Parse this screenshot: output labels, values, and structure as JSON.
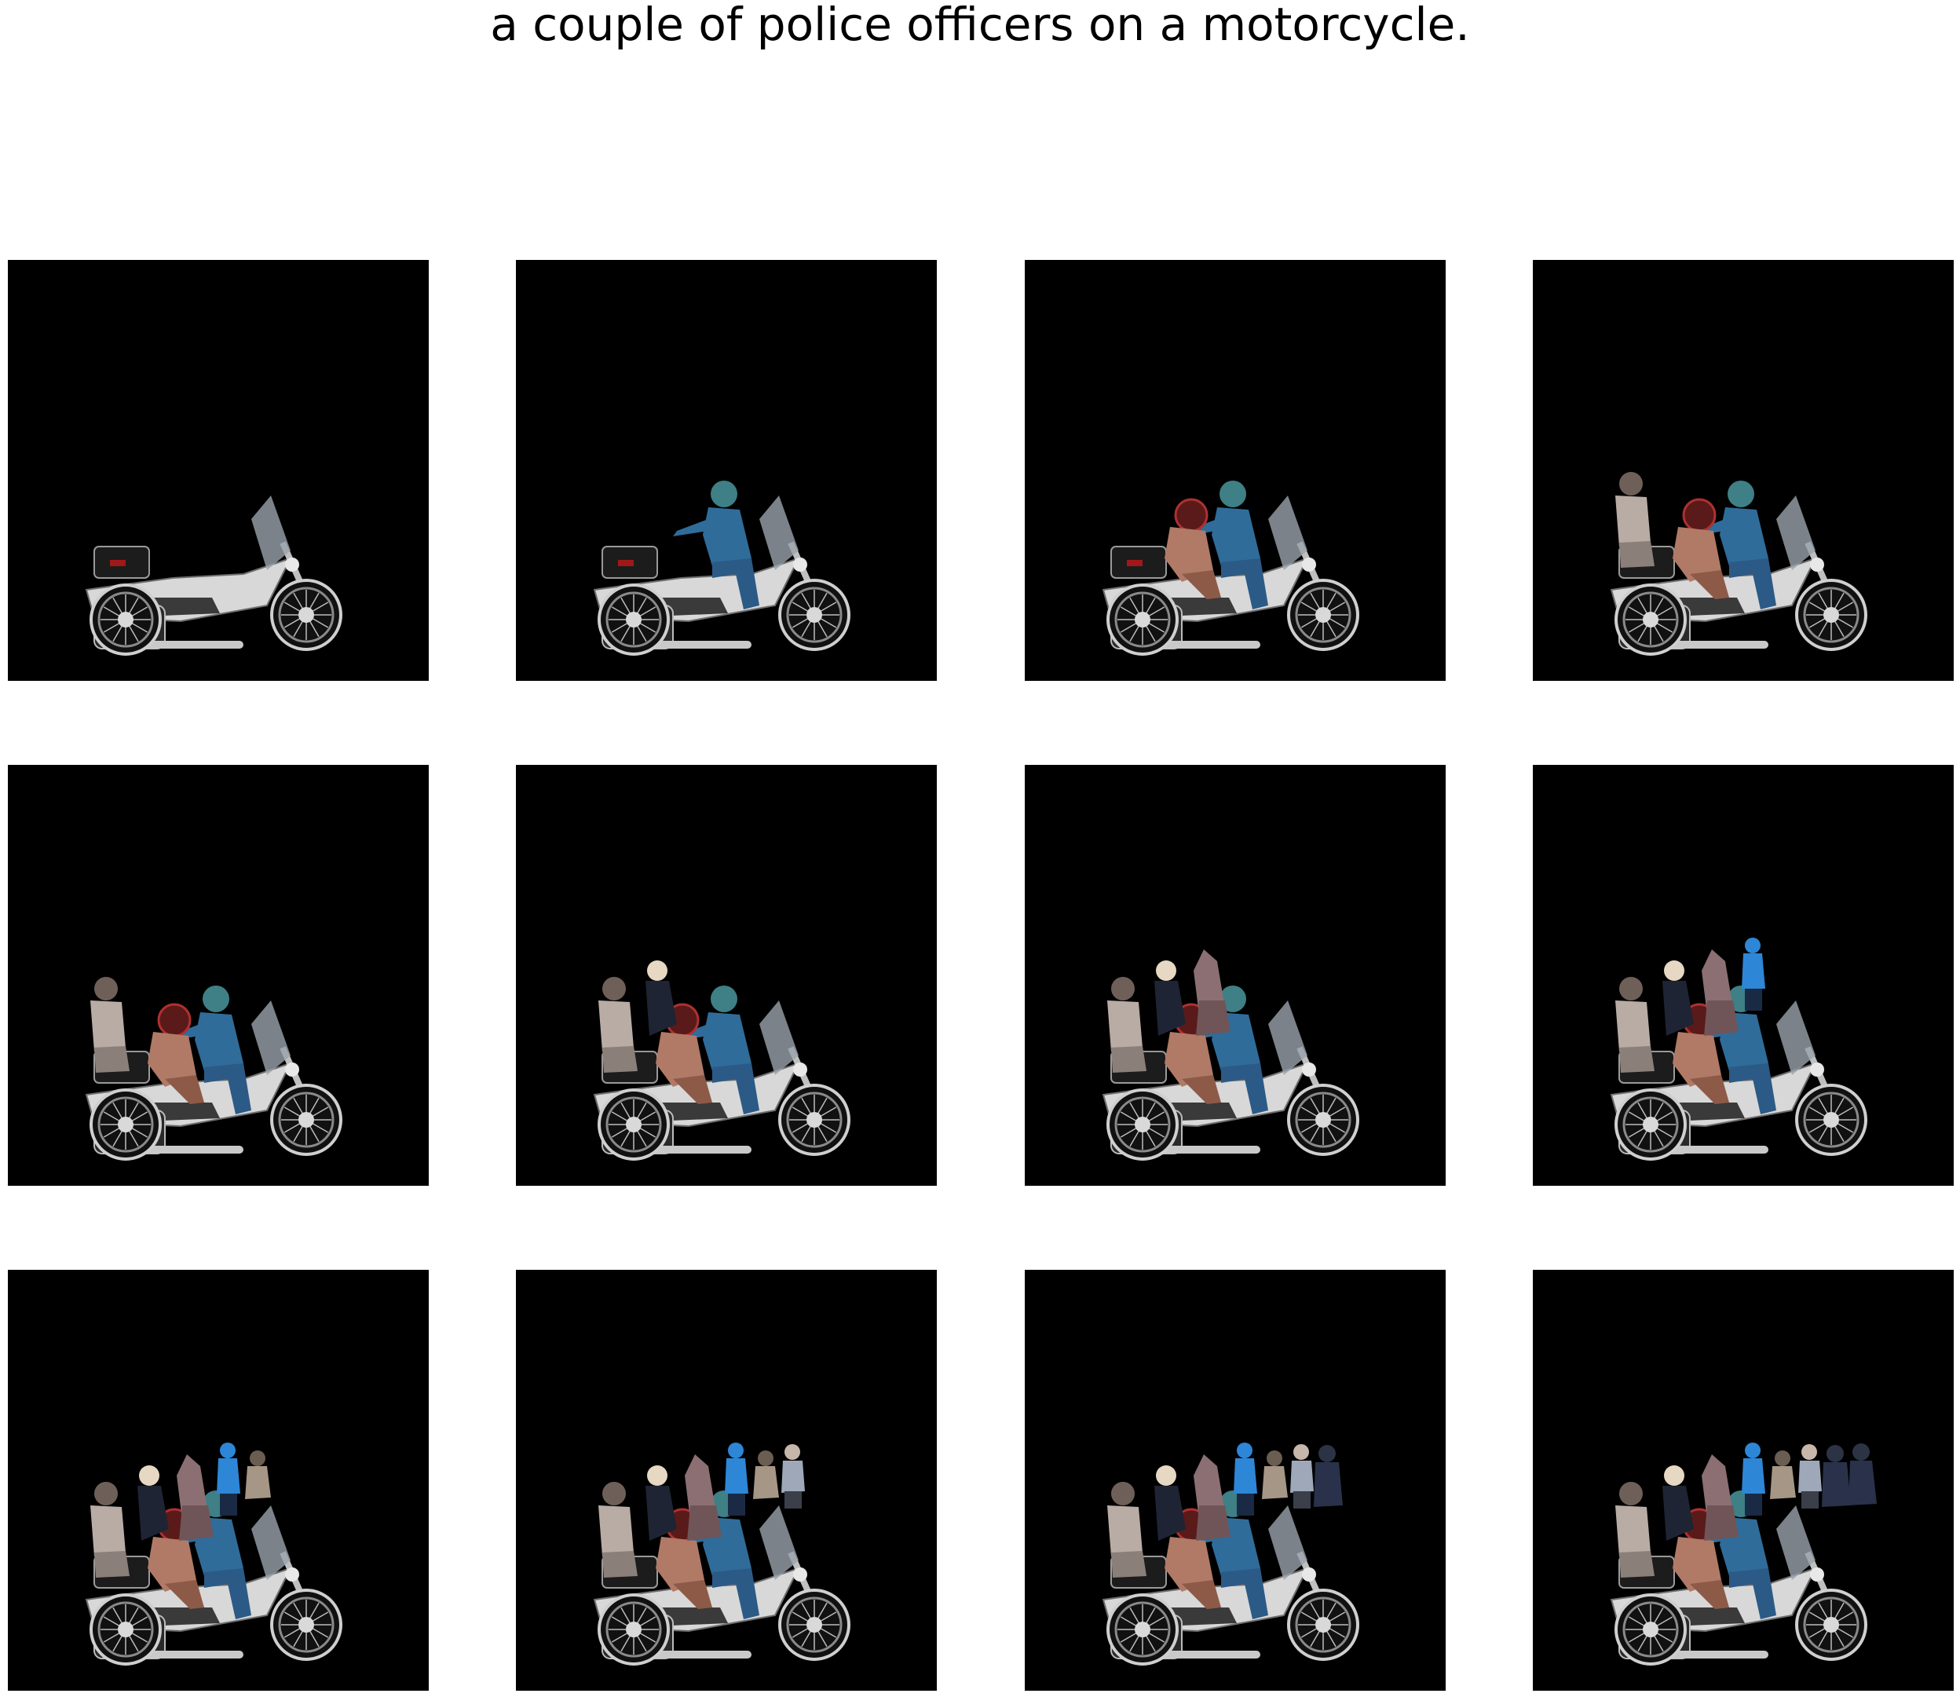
{
  "caption": "a couple of police officers on a motorcycle.",
  "colors": {
    "background": "#ffffff",
    "panel": "#000000"
  },
  "grid": {
    "rows": 3,
    "columns": 4
  },
  "panels": [
    {
      "step": 1,
      "layers": [
        "motorcycle"
      ]
    },
    {
      "step": 2,
      "layers": [
        "motorcycle",
        "rider-blue"
      ]
    },
    {
      "step": 3,
      "layers": [
        "motorcycle",
        "rider-blue",
        "passenger-red-helmet"
      ]
    },
    {
      "step": 4,
      "layers": [
        "motorcycle",
        "rider-blue",
        "passenger-red-helmet",
        "person-grey-rear"
      ]
    },
    {
      "step": 5,
      "layers": [
        "motorcycle",
        "rider-blue",
        "passenger-red-helmet",
        "person-grey-rear"
      ]
    },
    {
      "step": 6,
      "layers": [
        "motorcycle",
        "rider-blue",
        "passenger-red-helmet",
        "person-grey-rear",
        "person-blonde"
      ]
    },
    {
      "step": 7,
      "layers": [
        "motorcycle",
        "rider-blue",
        "passenger-red-helmet",
        "person-grey-rear",
        "person-blonde",
        "figure-pink-hooded"
      ]
    },
    {
      "step": 8,
      "layers": [
        "motorcycle",
        "rider-blue",
        "passenger-red-helmet",
        "person-grey-rear",
        "person-blonde",
        "figure-pink-hooded",
        "person-blue-jacket"
      ]
    },
    {
      "step": 9,
      "layers": [
        "motorcycle",
        "rider-blue",
        "passenger-red-helmet",
        "person-grey-rear",
        "person-blonde",
        "figure-pink-hooded",
        "person-blue-jacket",
        "person-tan"
      ]
    },
    {
      "step": 10,
      "layers": [
        "motorcycle",
        "rider-blue",
        "passenger-red-helmet",
        "person-grey-rear",
        "person-blonde",
        "figure-pink-hooded",
        "person-blue-jacket",
        "person-tan",
        "person-grey-shirt"
      ]
    },
    {
      "step": 11,
      "layers": [
        "motorcycle",
        "rider-blue",
        "passenger-red-helmet",
        "person-grey-rear",
        "person-blonde",
        "figure-pink-hooded",
        "person-blue-jacket",
        "person-tan",
        "person-grey-shirt",
        "officer-dark-coat"
      ]
    },
    {
      "step": 12,
      "layers": [
        "motorcycle",
        "rider-blue",
        "passenger-red-helmet",
        "person-grey-rear",
        "person-blonde",
        "figure-pink-hooded",
        "person-blue-jacket",
        "person-tan",
        "person-grey-shirt",
        "officer-dark-coat",
        "officer-dark-coat-2"
      ]
    }
  ]
}
